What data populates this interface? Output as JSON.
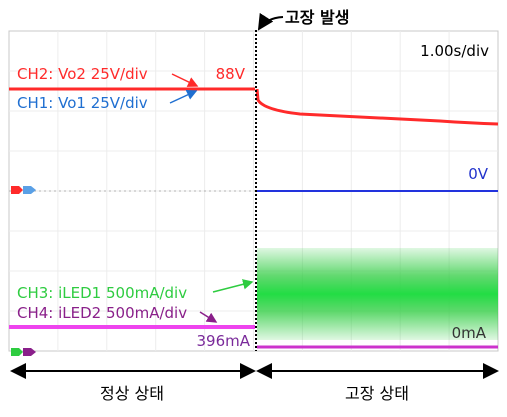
{
  "header": {
    "event_label": "고장 발생"
  },
  "chart_data": {
    "type": "line",
    "timebase": "1.00s/div",
    "channels": [
      {
        "id": "CH2",
        "label": "CH2: Vo2 25V/div",
        "color": "#ff2a2a",
        "before_event": "88V",
        "after_event": "decays from ~88V"
      },
      {
        "id": "CH1",
        "label": "CH1: Vo1 25V/div",
        "color": "#1f6fd1",
        "after_event_value": "0V"
      },
      {
        "id": "CH3",
        "label": "CH3: iLED1 500mA/div",
        "color": "#2ecc40",
        "after_event": "oscillating band"
      },
      {
        "id": "CH4",
        "label": "CH4: iLED2 500mA/div",
        "color": "#cc33cc",
        "before_event": "396mA",
        "after_event": "0mA"
      }
    ],
    "value_labels": {
      "ch2_voltage": "88V",
      "ch1_zero": "0V",
      "ch4_current": "396mA",
      "ch4_zero": "0mA"
    },
    "grid": true,
    "regions": [
      {
        "label": "정상 상태"
      },
      {
        "label": "고장 상태"
      }
    ]
  }
}
